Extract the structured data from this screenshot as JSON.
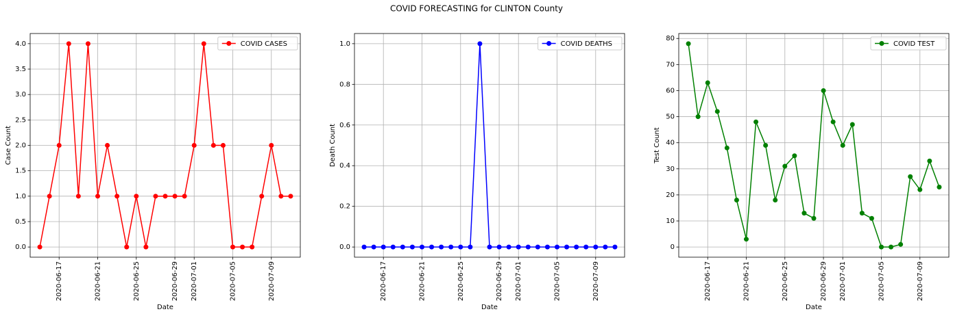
{
  "suptitle": "COVID FORECASTING for CLINTON County",
  "chart_data": [
    {
      "type": "line",
      "xlabel": "Date",
      "ylabel": "Case Count",
      "grid": true,
      "legend": "upper right",
      "x": [
        "2020-06-15",
        "2020-06-16",
        "2020-06-17",
        "2020-06-18",
        "2020-06-19",
        "2020-06-20",
        "2020-06-21",
        "2020-06-22",
        "2020-06-23",
        "2020-06-24",
        "2020-06-25",
        "2020-06-26",
        "2020-06-27",
        "2020-06-28",
        "2020-06-29",
        "2020-06-30",
        "2020-07-01",
        "2020-07-02",
        "2020-07-03",
        "2020-07-04",
        "2020-07-05",
        "2020-07-06",
        "2020-07-07",
        "2020-07-08",
        "2020-07-09",
        "2020-07-10",
        "2020-07-11"
      ],
      "xlim": [
        "2020-06-14",
        "2020-07-12"
      ],
      "xticks": [
        "2020-06-17",
        "2020-06-21",
        "2020-06-25",
        "2020-06-29",
        "2020-07-01",
        "2020-07-05",
        "2020-07-09"
      ],
      "ylim": [
        -0.2,
        4.2
      ],
      "yticks": [
        {
          "value": 0,
          "label": "0.0"
        },
        {
          "value": 0.5,
          "label": "0.5"
        },
        {
          "value": 1,
          "label": "1.0"
        },
        {
          "value": 1.5,
          "label": "1.5"
        },
        {
          "value": 2,
          "label": "2.0"
        },
        {
          "value": 2.5,
          "label": "2.5"
        },
        {
          "value": 3,
          "label": "3.0"
        },
        {
          "value": 3.5,
          "label": "3.5"
        },
        {
          "value": 4,
          "label": "4.0"
        }
      ],
      "series": [
        {
          "name": "COVID CASES",
          "color": "#ff0000",
          "values": [
            0,
            1,
            2,
            4,
            1,
            4,
            1,
            2,
            1,
            0,
            1,
            0,
            1,
            1,
            1,
            1,
            2,
            4,
            2,
            2,
            0,
            0,
            0,
            1,
            2,
            1,
            1
          ]
        }
      ]
    },
    {
      "type": "line",
      "xlabel": "Date",
      "ylabel": "Death Count",
      "grid": true,
      "legend": "upper right",
      "x": [
        "2020-06-15",
        "2020-06-16",
        "2020-06-17",
        "2020-06-18",
        "2020-06-19",
        "2020-06-20",
        "2020-06-21",
        "2020-06-22",
        "2020-06-23",
        "2020-06-24",
        "2020-06-25",
        "2020-06-26",
        "2020-06-27",
        "2020-06-28",
        "2020-06-29",
        "2020-06-30",
        "2020-07-01",
        "2020-07-02",
        "2020-07-03",
        "2020-07-04",
        "2020-07-05",
        "2020-07-06",
        "2020-07-07",
        "2020-07-08",
        "2020-07-09",
        "2020-07-10",
        "2020-07-11"
      ],
      "xlim": [
        "2020-06-14",
        "2020-07-12"
      ],
      "xticks": [
        "2020-06-17",
        "2020-06-21",
        "2020-06-25",
        "2020-06-29",
        "2020-07-01",
        "2020-07-05",
        "2020-07-09"
      ],
      "ylim": [
        -0.05,
        1.05
      ],
      "yticks": [
        {
          "value": 0,
          "label": "0.0"
        },
        {
          "value": 0.2,
          "label": "0.2"
        },
        {
          "value": 0.4,
          "label": "0.4"
        },
        {
          "value": 0.6,
          "label": "0.6"
        },
        {
          "value": 0.8,
          "label": "0.8"
        },
        {
          "value": 1,
          "label": "1.0"
        }
      ],
      "series": [
        {
          "name": "COVID DEATHS",
          "color": "#0000ff",
          "values": [
            0,
            0,
            0,
            0,
            0,
            0,
            0,
            0,
            0,
            0,
            0,
            0,
            1,
            0,
            0,
            0,
            0,
            0,
            0,
            0,
            0,
            0,
            0,
            0,
            0,
            0,
            0
          ]
        }
      ]
    },
    {
      "type": "line",
      "xlabel": "Date",
      "ylabel": "Test Count",
      "grid": true,
      "legend": "upper right",
      "x": [
        "2020-06-15",
        "2020-06-16",
        "2020-06-17",
        "2020-06-18",
        "2020-06-19",
        "2020-06-20",
        "2020-06-21",
        "2020-06-22",
        "2020-06-23",
        "2020-06-24",
        "2020-06-25",
        "2020-06-26",
        "2020-06-27",
        "2020-06-28",
        "2020-06-29",
        "2020-06-30",
        "2020-07-01",
        "2020-07-02",
        "2020-07-03",
        "2020-07-04",
        "2020-07-05",
        "2020-07-06",
        "2020-07-07",
        "2020-07-08",
        "2020-07-09",
        "2020-07-10",
        "2020-07-11"
      ],
      "xlim": [
        "2020-06-14",
        "2020-07-12"
      ],
      "xticks": [
        "2020-06-17",
        "2020-06-21",
        "2020-06-25",
        "2020-06-29",
        "2020-07-01",
        "2020-07-05",
        "2020-07-09"
      ],
      "ylim": [
        -3.9,
        81.9
      ],
      "yticks": [
        0,
        10,
        20,
        30,
        40,
        50,
        60,
        70,
        80
      ],
      "series": [
        {
          "name": "COVID TEST",
          "color": "#008000",
          "values": [
            78,
            50,
            63,
            52,
            38,
            18,
            3,
            48,
            39,
            18,
            31,
            35,
            13,
            11,
            60,
            48,
            39,
            47,
            13,
            11,
            0,
            0,
            1,
            27,
            22,
            33,
            23
          ]
        }
      ]
    }
  ]
}
